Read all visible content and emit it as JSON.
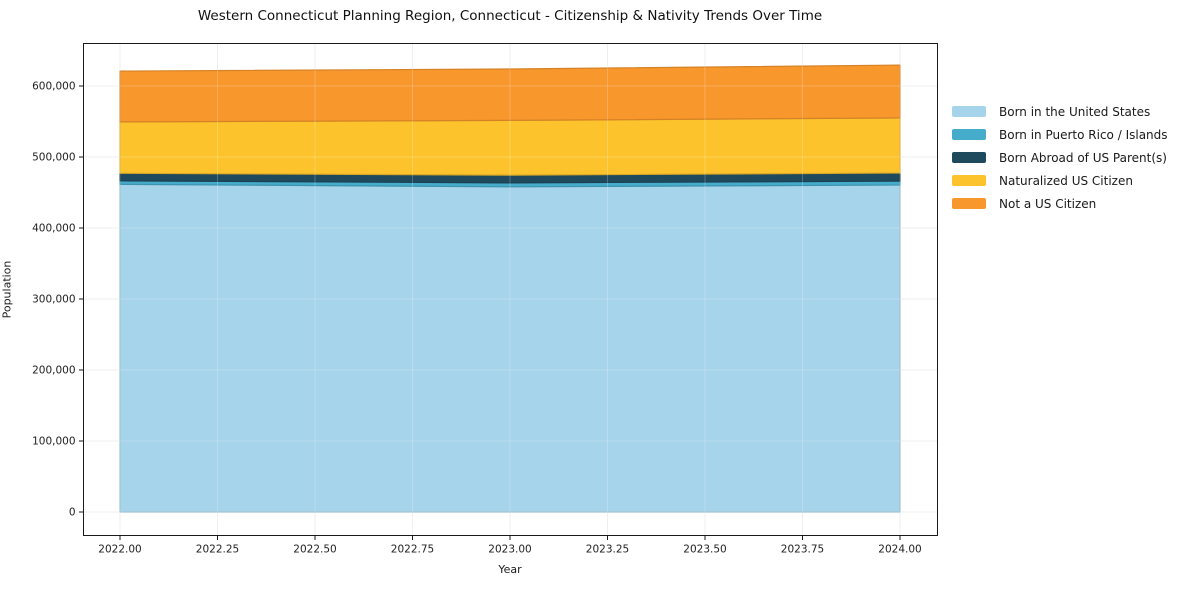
{
  "chart_data": {
    "type": "area",
    "stacked": true,
    "title": "Western Connecticut Planning Region, Connecticut - Citizenship & Nativity Trends Over Time",
    "xlabel": "Year",
    "ylabel": "Population",
    "x": [
      2022,
      2023,
      2024
    ],
    "series": [
      {
        "name": "Born in the United States",
        "color": "#A6D4EA",
        "values": [
          461500,
          458000,
          460500
        ]
      },
      {
        "name": "Born in Puerto Rico / Islands",
        "color": "#46ACCB",
        "values": [
          5000,
          5500,
          5500
        ]
      },
      {
        "name": "Born Abroad of US Parent(s)",
        "color": "#1F4A5E",
        "values": [
          10500,
          11000,
          11500
        ]
      },
      {
        "name": "Naturalized US Citizen",
        "color": "#FDC32D",
        "values": [
          72500,
          77000,
          77500
        ]
      },
      {
        "name": "Not a US Citizen",
        "color": "#F8972C",
        "values": [
          71500,
          72500,
          74500
        ]
      }
    ],
    "x_ticks": {
      "values": [
        2022.0,
        2022.25,
        2022.5,
        2022.75,
        2023.0,
        2023.25,
        2023.5,
        2023.75,
        2024.0
      ],
      "labels": [
        "2022.00",
        "2022.25",
        "2022.50",
        "2022.75",
        "2023.00",
        "2023.25",
        "2023.50",
        "2023.75",
        "2024.00"
      ]
    },
    "y_ticks": {
      "values": [
        0,
        100000,
        200000,
        300000,
        400000,
        500000,
        600000
      ],
      "labels": [
        "0",
        "100,000",
        "200,000",
        "300,000",
        "400,000",
        "500,000",
        "600,000"
      ]
    },
    "xlim": [
      2021.905,
      2024.095
    ],
    "ylim": [
      -33800,
      660600
    ],
    "grid": true,
    "legend_position": "right"
  }
}
